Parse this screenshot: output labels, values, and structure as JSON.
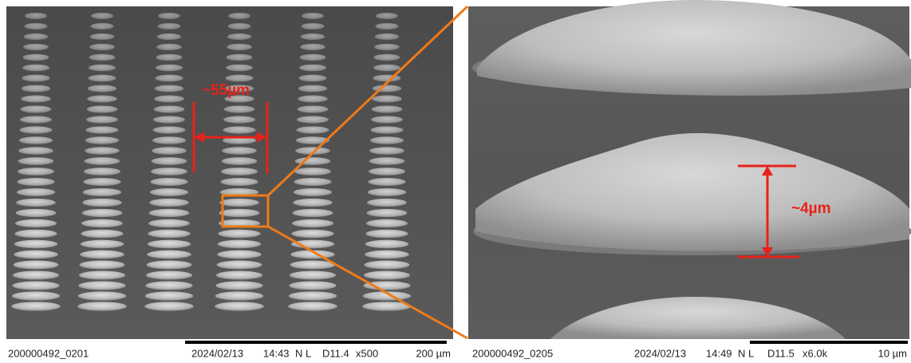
{
  "left_panel": {
    "annotation": "~55µm",
    "footer": {
      "image_id": "200000492_0201",
      "date": "2024/02/13",
      "time": "14:43",
      "mode": "N L",
      "working_distance": "D11.4",
      "magnification": "x500",
      "scale_bar": "200 µm"
    }
  },
  "right_panel": {
    "annotation": "~4µm",
    "footer": {
      "image_id": "200000492_0205",
      "date": "2024/02/13",
      "time": "14:49",
      "mode": "N L",
      "working_distance": "D11.5",
      "magnification": "x6.0k",
      "scale_bar": "10 µm"
    }
  }
}
